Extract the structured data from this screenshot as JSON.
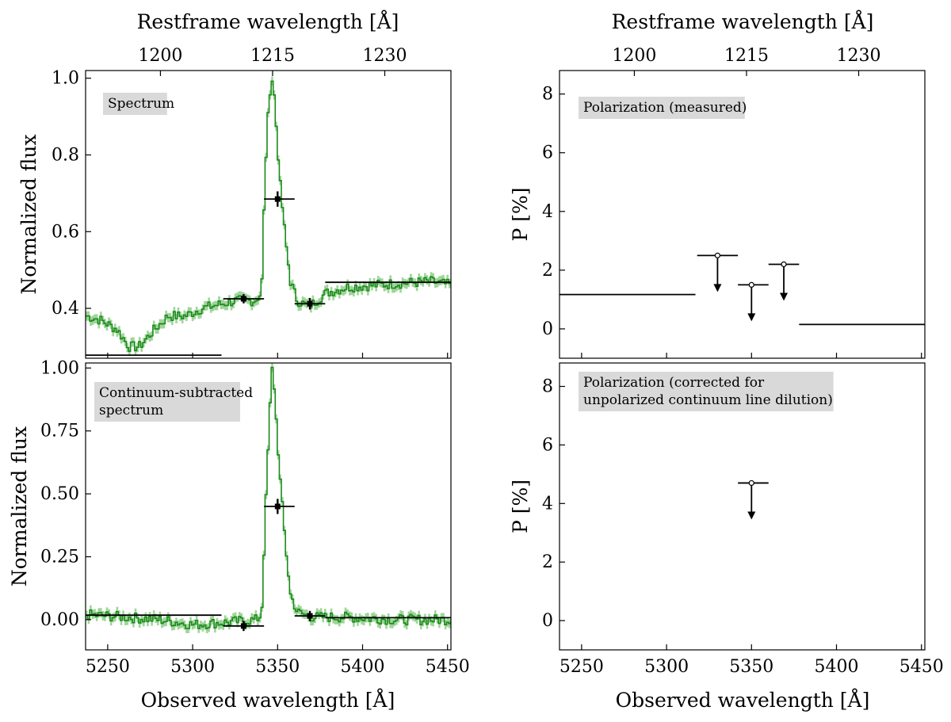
{
  "figure": {
    "top_axis_label": "Restframe wavelength  [Å]",
    "bottom_axis_label": "Observed wavelength  [Å]",
    "top_axis_unit": "Å",
    "colors": {
      "spectrum_line": "#1a8a1a",
      "spectrum_band": "#9fd59a",
      "label_box": "#d9d9d9",
      "marker": "#000000"
    }
  },
  "chart_data": [
    {
      "id": "spectrum",
      "type": "line",
      "label": "Spectrum",
      "ylabel": "Normalized flux",
      "xlim": [
        5237,
        5452
      ],
      "ylim": [
        0.27,
        1.02
      ],
      "yticks": [
        0.4,
        0.6,
        0.8,
        1.0
      ],
      "ytick_labels": [
        "0.4",
        "0.6",
        "0.8",
        "1.0"
      ],
      "xticks": [
        5250,
        5300,
        5350,
        5400,
        5450
      ],
      "xtick_labels": [
        "",
        "",
        "",
        "",
        ""
      ],
      "top_ticks": [
        1200,
        1215,
        1230
      ],
      "top_tick_labels": [
        "1200",
        "1215",
        "1230"
      ],
      "profile": [
        [
          5237,
          0.38
        ],
        [
          5245,
          0.37
        ],
        [
          5255,
          0.345
        ],
        [
          5262,
          0.3
        ],
        [
          5268,
          0.3
        ],
        [
          5276,
          0.34
        ],
        [
          5285,
          0.38
        ],
        [
          5295,
          0.38
        ],
        [
          5305,
          0.4
        ],
        [
          5315,
          0.41
        ],
        [
          5325,
          0.42
        ],
        [
          5336,
          0.42
        ],
        [
          5340,
          0.44
        ],
        [
          5341,
          0.6
        ],
        [
          5343,
          0.85
        ],
        [
          5345,
          0.97
        ],
        [
          5346,
          1.0
        ],
        [
          5347,
          0.98
        ],
        [
          5349,
          0.85
        ],
        [
          5351,
          0.72
        ],
        [
          5354,
          0.58
        ],
        [
          5357,
          0.47
        ],
        [
          5361,
          0.42
        ],
        [
          5368,
          0.405
        ],
        [
          5378,
          0.44
        ],
        [
          5390,
          0.455
        ],
        [
          5405,
          0.46
        ],
        [
          5420,
          0.465
        ],
        [
          5440,
          0.47
        ],
        [
          5452,
          0.46
        ]
      ],
      "points": [
        {
          "x": 5330,
          "xlo": 5318,
          "xhi": 5342,
          "y": 0.425,
          "yerr": 0.012
        },
        {
          "x": 5350,
          "xlo": 5342,
          "xhi": 5360,
          "y": 0.685,
          "yerr": 0.02
        },
        {
          "x": 5369,
          "xlo": 5360,
          "xhi": 5378,
          "y": 0.412,
          "yerr": 0.015
        }
      ],
      "hlines": [
        {
          "x0": 5237,
          "x1": 5317,
          "y": 0.278
        },
        {
          "x0": 5378,
          "x1": 5452,
          "y": 0.468
        }
      ]
    },
    {
      "id": "continuum_subtracted",
      "type": "line",
      "label": "Continuum-subtracted spectrum",
      "label_lines": [
        "Continuum-subtracted",
        "spectrum"
      ],
      "ylabel": "Normalized flux",
      "xlim": [
        5237,
        5452
      ],
      "ylim": [
        -0.12,
        1.02
      ],
      "yticks": [
        0.0,
        0.25,
        0.5,
        0.75,
        1.0
      ],
      "ytick_labels": [
        "0.00",
        "0.25",
        "0.50",
        "0.75",
        "1.00"
      ],
      "xticks": [
        5250,
        5300,
        5350,
        5400,
        5450
      ],
      "xtick_labels": [
        "5250",
        "5300",
        "5350",
        "5400",
        "5450"
      ],
      "profile": [
        [
          5237,
          0.02
        ],
        [
          5260,
          0.01
        ],
        [
          5280,
          0.0
        ],
        [
          5300,
          -0.02
        ],
        [
          5320,
          -0.01
        ],
        [
          5337,
          0.0
        ],
        [
          5340,
          0.02
        ],
        [
          5341,
          0.2
        ],
        [
          5343,
          0.55
        ],
        [
          5345,
          0.85
        ],
        [
          5346,
          1.0
        ],
        [
          5347,
          0.97
        ],
        [
          5349,
          0.75
        ],
        [
          5351,
          0.55
        ],
        [
          5354,
          0.3
        ],
        [
          5357,
          0.1
        ],
        [
          5361,
          0.03
        ],
        [
          5370,
          0.01
        ],
        [
          5390,
          0.01
        ],
        [
          5420,
          0.0
        ],
        [
          5452,
          0.0
        ]
      ],
      "points": [
        {
          "x": 5330,
          "xlo": 5318,
          "xhi": 5342,
          "y": -0.025,
          "yerr": 0.02
        },
        {
          "x": 5350,
          "xlo": 5342,
          "xhi": 5360,
          "y": 0.45,
          "yerr": 0.03
        },
        {
          "x": 5369,
          "xlo": 5360,
          "xhi": 5378,
          "y": 0.015,
          "yerr": 0.02
        }
      ],
      "hlines": [
        {
          "x0": 5237,
          "x1": 5317,
          "y": 0.018
        },
        {
          "x0": 5378,
          "x1": 5452,
          "y": 0.008
        }
      ]
    },
    {
      "id": "pol_measured",
      "type": "scatter",
      "label": "Polarization (measured)",
      "ylabel": "P [%]",
      "xlim": [
        5237,
        5452
      ],
      "ylim": [
        -1.0,
        8.8
      ],
      "yticks": [
        0,
        2,
        4,
        6,
        8
      ],
      "ytick_labels": [
        "0",
        "2",
        "4",
        "6",
        "8"
      ],
      "xticks": [
        5250,
        5300,
        5350,
        5400,
        5450
      ],
      "xtick_labels": [
        "",
        "",
        "",
        "",
        ""
      ],
      "top_ticks": [
        1200,
        1215,
        1230
      ],
      "top_tick_labels": [
        "1200",
        "1215",
        "1230"
      ],
      "upper_limits": [
        {
          "x": 5330,
          "xlo": 5318,
          "xhi": 5342,
          "y": 2.5
        },
        {
          "x": 5350,
          "xlo": 5342,
          "xhi": 5360,
          "y": 1.5
        },
        {
          "x": 5369,
          "xlo": 5360,
          "xhi": 5378,
          "y": 2.2
        }
      ],
      "hlines": [
        {
          "x0": 5237,
          "x1": 5317,
          "y": 1.17
        },
        {
          "x0": 5378,
          "x1": 5452,
          "y": 0.15
        }
      ]
    },
    {
      "id": "pol_corrected",
      "type": "scatter",
      "label": "Polarization (corrected for unpolarized continuum line dilution)",
      "label_lines": [
        "Polarization (corrected for",
        "unpolarized continuum line dilution)"
      ],
      "ylabel": "P [%]",
      "xlim": [
        5237,
        5452
      ],
      "ylim": [
        -1.0,
        8.8
      ],
      "yticks": [
        0,
        2,
        4,
        6,
        8
      ],
      "ytick_labels": [
        "0",
        "2",
        "4",
        "6",
        "8"
      ],
      "xticks": [
        5250,
        5300,
        5350,
        5400,
        5450
      ],
      "xtick_labels": [
        "5250",
        "5300",
        "5350",
        "5400",
        "5450"
      ],
      "upper_limits": [
        {
          "x": 5350,
          "xlo": 5342,
          "xhi": 5360,
          "y": 4.7
        }
      ],
      "hlines": []
    }
  ]
}
